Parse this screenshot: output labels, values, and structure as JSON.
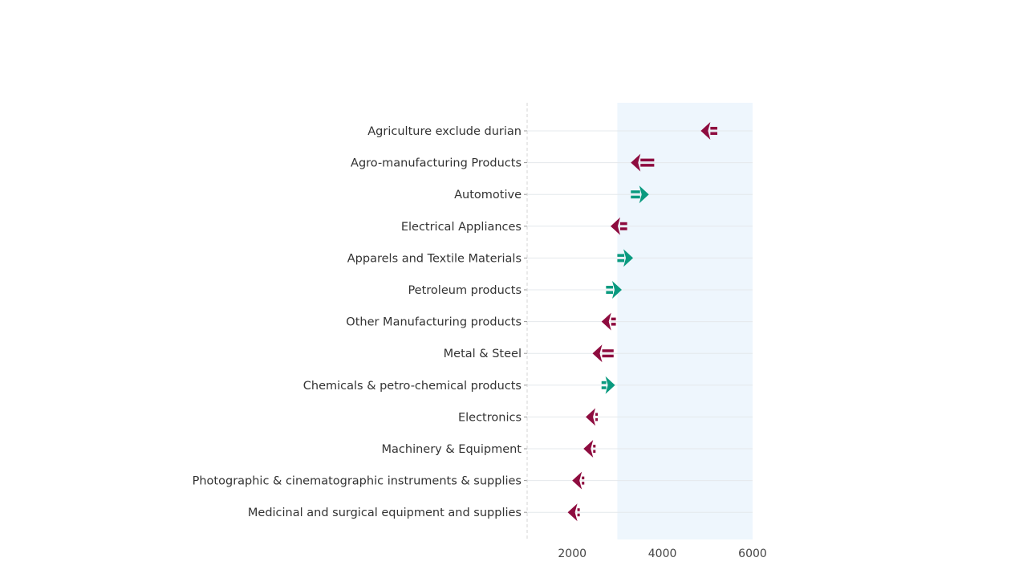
{
  "chart_data": {
    "type": "arrow-dot",
    "categories": [
      "Agriculture exclude durian",
      "Agro-manufacturing Products",
      "Automotive",
      "Electrical Appliances",
      "Apparels and Textile Materials",
      "Petroleum products",
      "Other Manufacturing products",
      "Metal & Steel",
      "Chemicals & petro-chemical products",
      "Electronics",
      "Machinery & Equipment",
      "Photographic & cinematographic instruments & supplies",
      "Medicinal and surgical equipment and supplies"
    ],
    "series": [
      {
        "values_from": [
          5200,
          3800,
          3300,
          3200,
          3000,
          2750,
          2950,
          2900,
          2650,
          2550,
          2500,
          2250,
          2150
        ],
        "values_to": [
          4850,
          3300,
          3700,
          2850,
          3350,
          3100,
          2650,
          2450,
          2950,
          2300,
          2250,
          2000,
          1900
        ]
      }
    ],
    "xlim": [
      1000,
      6000
    ],
    "xticks": [
      2000,
      4000,
      6000
    ],
    "shaded_range": [
      3000,
      6000
    ],
    "grid": true,
    "colors": {
      "increase": "#0a9a7f",
      "decrease": "#8e0c3f",
      "shade": "#eef6fd",
      "grid": "#e4e8ec"
    }
  }
}
